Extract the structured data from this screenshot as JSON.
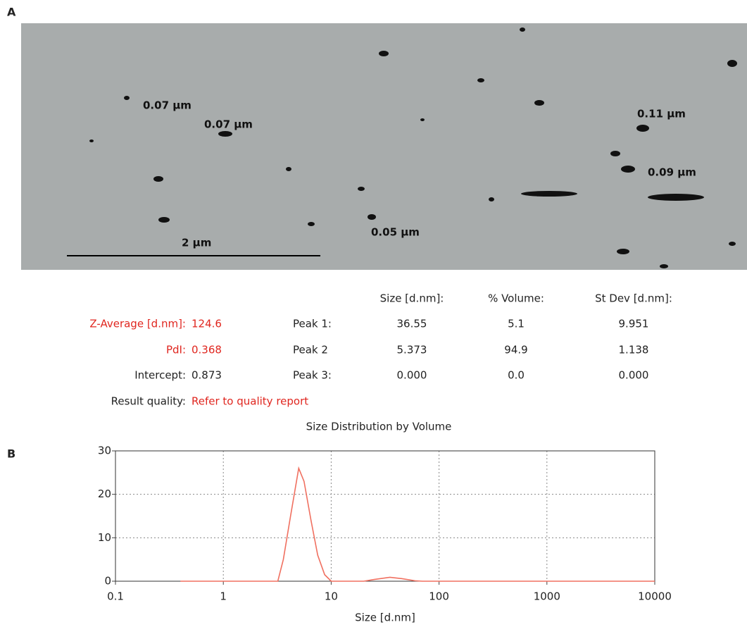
{
  "panels": [
    "A",
    "B"
  ],
  "micrograph": {
    "annotations": [
      "0.07 µm",
      "0.07 µm",
      "0.11 µm",
      "0.09 µm",
      "0.05 µm"
    ],
    "scale_bar": "2 µm"
  },
  "summary": [
    {
      "label": "Z-Average [d.nm]:",
      "value": "124.6"
    },
    {
      "label": "PdI:",
      "value": "0.368"
    },
    {
      "label": "Intercept:",
      "value": "0.873"
    },
    {
      "label": "Result quality:",
      "value": "Refer to quality report"
    }
  ],
  "peaks": {
    "header": [
      "Size [d.nm]:",
      "% Volume:",
      "St Dev [d.nm]:"
    ],
    "rows": [
      {
        "label": "Peak 1:",
        "values": [
          "36.55",
          "5.1",
          "9.951"
        ]
      },
      {
        "label": "Peak 2",
        "values": [
          "5.373",
          "94.9",
          "1.138"
        ]
      },
      {
        "label": "Peak 3:",
        "values": [
          "0.000",
          "0.0",
          "0.000"
        ]
      }
    ]
  },
  "chart_data": {
    "type": "line",
    "title": "Size Distribution by Volume",
    "xlabel": "Size [d.nm]",
    "x": [
      0.4,
      1,
      2,
      3.2,
      3.6,
      4.2,
      5,
      5.6,
      6.5,
      7.5,
      8.7,
      10,
      20,
      25,
      35,
      45,
      60,
      70,
      100,
      1000,
      10000
    ],
    "values": [
      0,
      0,
      0,
      0,
      5,
      15,
      26,
      23,
      14,
      6,
      1.5,
      0,
      0,
      0.4,
      0.9,
      0.6,
      0.1,
      0,
      0,
      0,
      0
    ],
    "color": "#f07060",
    "xlog": true,
    "grid": true,
    "xlim": [
      0.1,
      10000
    ],
    "xticks": [
      0.1,
      1,
      10,
      100,
      1000,
      10000
    ],
    "ylim": [
      0,
      30
    ],
    "yticks": [
      0,
      10,
      20,
      30
    ]
  }
}
